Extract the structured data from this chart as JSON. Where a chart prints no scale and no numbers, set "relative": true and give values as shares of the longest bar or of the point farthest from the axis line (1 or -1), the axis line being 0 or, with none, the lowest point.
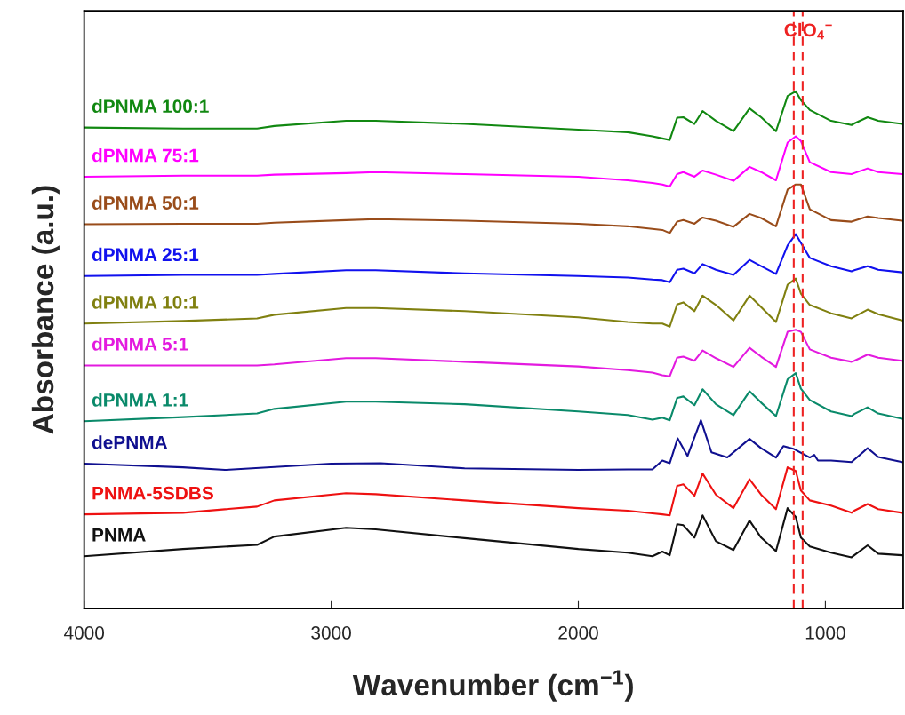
{
  "chart_data": {
    "type": "line",
    "relative": true,
    "xlabel": "Wavenumber (cm$^{−1}$)",
    "ylabel": "Absorbance (a.u.)",
    "xlim": [
      4000,
      685
    ],
    "xticks": [
      4000,
      3000,
      2000,
      1000
    ],
    "grid": false,
    "legend": false,
    "line_style": "solid",
    "marker": "none",
    "x": [
      4000,
      3600,
      3300,
      3230,
      2940,
      2820,
      2460,
      2000,
      1800,
      1700,
      1660,
      1630,
      1600,
      1575,
      1530,
      1497,
      1443,
      1372,
      1307,
      1260,
      1200,
      1153,
      1120,
      1099,
      1063,
      977,
      894,
      883,
      829,
      786,
      689
    ],
    "series": [
      {
        "name": "dPNMA 100:1",
        "color": "#118811",
        "values": [
          0.93,
          0.928,
          0.928,
          0.933,
          0.943,
          0.943,
          0.937,
          0.926,
          0.921,
          0.913,
          0.909,
          0.906,
          0.949,
          0.95,
          0.937,
          0.962,
          0.943,
          0.923,
          0.967,
          0.95,
          0.923,
          0.991,
          1.0,
          0.983,
          0.964,
          0.943,
          0.935,
          0.938,
          0.95,
          0.943,
          0.937
        ]
      },
      {
        "name": "dPNMA 75:1",
        "color": "#ff00ff",
        "values": [
          0.835,
          0.837,
          0.837,
          0.839,
          0.842,
          0.844,
          0.84,
          0.835,
          0.828,
          0.823,
          0.82,
          0.816,
          0.84,
          0.844,
          0.835,
          0.847,
          0.839,
          0.827,
          0.854,
          0.844,
          0.828,
          0.901,
          0.913,
          0.904,
          0.863,
          0.844,
          0.84,
          0.842,
          0.851,
          0.844,
          0.84
        ]
      },
      {
        "name": "dPNMA 50:1",
        "color": "#994c1a",
        "values": [
          0.743,
          0.744,
          0.744,
          0.746,
          0.751,
          0.753,
          0.75,
          0.744,
          0.739,
          0.734,
          0.732,
          0.726,
          0.748,
          0.751,
          0.744,
          0.756,
          0.75,
          0.738,
          0.763,
          0.755,
          0.739,
          0.81,
          0.82,
          0.82,
          0.772,
          0.751,
          0.748,
          0.75,
          0.758,
          0.755,
          0.75
        ]
      },
      {
        "name": "dPNMA 25:1",
        "color": "#1111ee",
        "values": [
          0.643,
          0.645,
          0.645,
          0.647,
          0.654,
          0.654,
          0.648,
          0.643,
          0.64,
          0.636,
          0.635,
          0.631,
          0.655,
          0.657,
          0.648,
          0.666,
          0.655,
          0.645,
          0.674,
          0.662,
          0.647,
          0.702,
          0.724,
          0.707,
          0.678,
          0.662,
          0.652,
          0.654,
          0.662,
          0.655,
          0.65
        ]
      },
      {
        "name": "dPNMA 10:1",
        "color": "#808010",
        "values": [
          0.551,
          0.556,
          0.561,
          0.568,
          0.581,
          0.581,
          0.575,
          0.563,
          0.554,
          0.551,
          0.551,
          0.545,
          0.588,
          0.592,
          0.575,
          0.605,
          0.587,
          0.557,
          0.605,
          0.583,
          0.554,
          0.626,
          0.638,
          0.609,
          0.587,
          0.571,
          0.561,
          0.564,
          0.578,
          0.569,
          0.557
        ]
      },
      {
        "name": "dPNMA 5:1",
        "color": "#e31adf",
        "values": [
          0.47,
          0.47,
          0.47,
          0.472,
          0.484,
          0.484,
          0.477,
          0.468,
          0.461,
          0.456,
          0.451,
          0.449,
          0.485,
          0.487,
          0.479,
          0.499,
          0.484,
          0.467,
          0.504,
          0.487,
          0.467,
          0.535,
          0.539,
          0.535,
          0.501,
          0.485,
          0.477,
          0.479,
          0.491,
          0.485,
          0.479
        ]
      },
      {
        "name": "dPNMA 1:1",
        "color": "#0a8a6a",
        "values": [
          0.362,
          0.37,
          0.377,
          0.386,
          0.4,
          0.4,
          0.395,
          0.381,
          0.374,
          0.365,
          0.369,
          0.364,
          0.407,
          0.41,
          0.393,
          0.424,
          0.395,
          0.374,
          0.42,
          0.398,
          0.372,
          0.443,
          0.455,
          0.425,
          0.403,
          0.381,
          0.372,
          0.376,
          0.389,
          0.377,
          0.367
        ]
      },
      {
        "name": "dePNMA",
        "color": "#101090",
        "x": [
          4000,
          3600,
          3430,
          3000,
          2800,
          2460,
          2000,
          1800,
          1700,
          1660,
          1630,
          1598,
          1558,
          1504,
          1461,
          1397,
          1307,
          1260,
          1200,
          1170,
          1130,
          1063,
          1045,
          1030,
          977,
          894,
          829,
          786,
          689
        ],
        "values": [
          0.28,
          0.273,
          0.268,
          0.28,
          0.281,
          0.271,
          0.268,
          0.269,
          0.269,
          0.286,
          0.281,
          0.329,
          0.295,
          0.364,
          0.302,
          0.292,
          0.328,
          0.31,
          0.292,
          0.314,
          0.309,
          0.292,
          0.297,
          0.286,
          0.286,
          0.283,
          0.31,
          0.293,
          0.283
        ]
      },
      {
        "name": "PNMA-5SDBS",
        "color": "#ee1111",
        "values": [
          0.182,
          0.185,
          0.197,
          0.209,
          0.223,
          0.221,
          0.209,
          0.194,
          0.189,
          0.184,
          0.182,
          0.18,
          0.237,
          0.24,
          0.218,
          0.261,
          0.22,
          0.194,
          0.25,
          0.22,
          0.192,
          0.273,
          0.266,
          0.228,
          0.209,
          0.199,
          0.185,
          0.189,
          0.202,
          0.192,
          0.185
        ]
      },
      {
        "name": "PNMA",
        "color": "#111111",
        "values": [
          0.101,
          0.115,
          0.123,
          0.139,
          0.156,
          0.153,
          0.136,
          0.115,
          0.108,
          0.101,
          0.11,
          0.103,
          0.163,
          0.161,
          0.137,
          0.18,
          0.13,
          0.113,
          0.17,
          0.137,
          0.111,
          0.194,
          0.177,
          0.137,
          0.12,
          0.108,
          0.099,
          0.103,
          0.122,
          0.106,
          0.103
        ]
      }
    ],
    "ref_lines": [
      {
        "axis": "x",
        "value": 1128,
        "label": "ClO$_{4}$$^{−}$",
        "color": "#ee2222",
        "line_style": "dashed"
      },
      {
        "axis": "x",
        "value": 1092,
        "color": "#ee2222",
        "line_style": "dashed"
      }
    ]
  }
}
